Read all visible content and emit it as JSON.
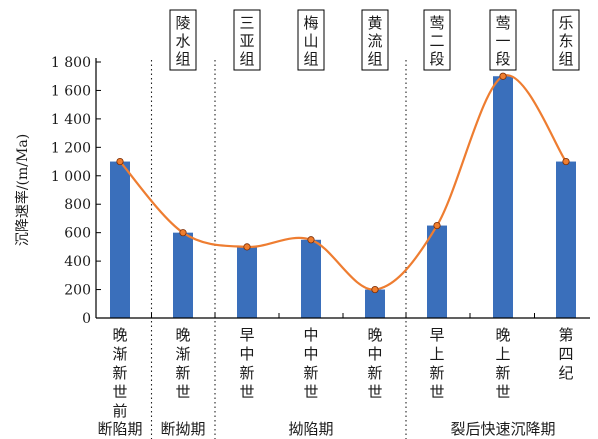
{
  "chart_data": {
    "type": "bar",
    "ylabel": "沉降速率/(m/Ma)",
    "ylim": [
      0,
      1800
    ],
    "yticks": [
      0,
      200,
      400,
      600,
      800,
      1000,
      1200,
      1400,
      1600,
      1800
    ],
    "ytick_labels": [
      "0",
      "200",
      "400",
      "600",
      "800",
      "1 000",
      "1 200",
      "1 400",
      "1 600",
      "1 800"
    ],
    "categories": [
      "晚渐新世前",
      "晚渐新世",
      "早中新世",
      "中中新世",
      "晚中新世",
      "早上新世",
      "晚上新世",
      "第四纪"
    ],
    "category_labels": [
      [
        "晚",
        "渐",
        "新",
        "世",
        "前"
      ],
      [
        "晚",
        "渐",
        "新",
        "世"
      ],
      [
        "早",
        "中",
        "新",
        "世"
      ],
      [
        "中",
        "中",
        "新",
        "世"
      ],
      [
        "晚",
        "中",
        "新",
        "世"
      ],
      [
        "早",
        "上",
        "新",
        "世"
      ],
      [
        "晚",
        "上",
        "新",
        "世"
      ],
      [
        "第",
        "四",
        "纪"
      ]
    ],
    "values": [
      1100,
      600,
      500,
      550,
      200,
      650,
      1700,
      1100
    ],
    "bar_color": "#3a6fbb",
    "line_color": "#ee7d31",
    "point_color": "#f07e2e",
    "formations": [
      {
        "lines": [
          "陵",
          "水",
          "组"
        ],
        "category_index": 1
      },
      {
        "lines": [
          "三",
          "亚",
          "组"
        ],
        "category_index": 2
      },
      {
        "lines": [
          "梅",
          "山",
          "组"
        ],
        "category_index": 3
      },
      {
        "lines": [
          "黄",
          "流",
          "组"
        ],
        "category_index": 4
      },
      {
        "lines": [
          "莺",
          "二",
          "段"
        ],
        "category_index": 5
      },
      {
        "lines": [
          "莺",
          "一",
          "段"
        ],
        "category_index": 6
      },
      {
        "lines": [
          "乐",
          "东",
          "组"
        ],
        "category_index": 7
      }
    ],
    "stages": [
      {
        "label": "断陷期",
        "category_index": 0
      },
      {
        "label": "断拗期",
        "category_index": 1
      },
      {
        "label": "拗陷期",
        "category_index": 3
      },
      {
        "label": "裂后快速沉降期",
        "category_index": 6
      }
    ],
    "dotted_separators_after_category": [
      0,
      1,
      4
    ]
  }
}
